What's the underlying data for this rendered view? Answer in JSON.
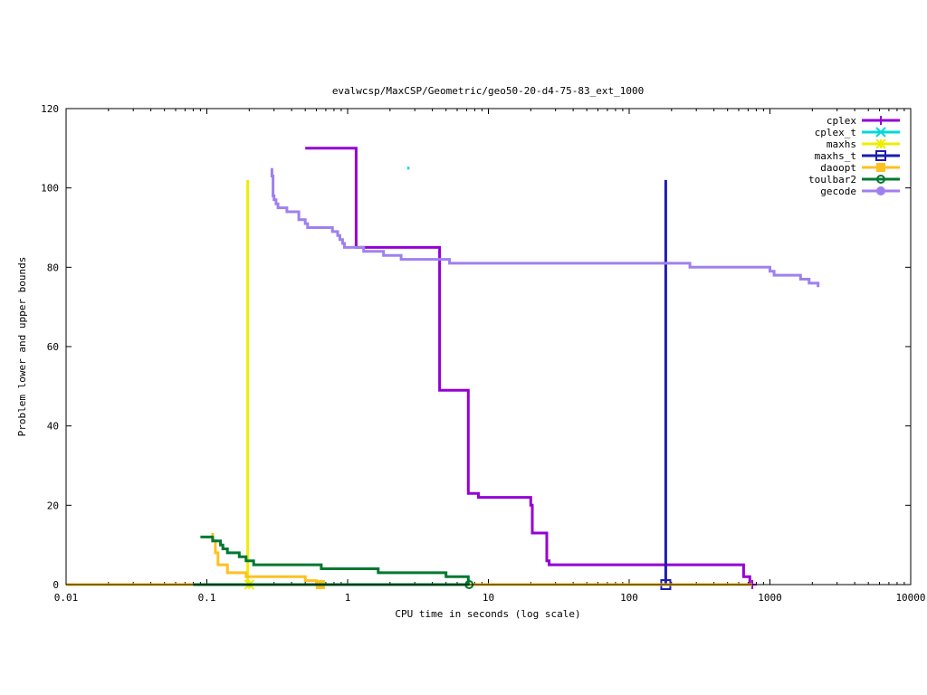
{
  "chart_data": {
    "type": "line",
    "title": "evalwcsp/MaxCSP/Geometric/geo50-20-d4-75-83_ext_1000",
    "xlabel": "CPU time in seconds (log scale)",
    "ylabel": "Problem lower and upper bounds",
    "xscale": "log",
    "xlim": [
      0.01,
      10000
    ],
    "ylim": [
      0,
      120
    ],
    "x_ticks": [
      {
        "value": 0.01,
        "label": "0.01"
      },
      {
        "value": 0.1,
        "label": "0.1"
      },
      {
        "value": 1,
        "label": "1"
      },
      {
        "value": 10,
        "label": "10"
      },
      {
        "value": 100,
        "label": "100"
      },
      {
        "value": 1000,
        "label": "1000"
      },
      {
        "value": 10000,
        "label": "10000"
      }
    ],
    "y_ticks": [
      {
        "value": 0,
        "label": "0"
      },
      {
        "value": 20,
        "label": "20"
      },
      {
        "value": 40,
        "label": "40"
      },
      {
        "value": 60,
        "label": "60"
      },
      {
        "value": 80,
        "label": "80"
      },
      {
        "value": 100,
        "label": "100"
      },
      {
        "value": 120,
        "label": "120"
      }
    ],
    "grid": false,
    "legend_position": "top-right",
    "series": [
      {
        "name": "cplex",
        "color": "#9400d3",
        "marker": "plus",
        "upper": [
          [
            0.5,
            110
          ],
          [
            1.15,
            110
          ],
          [
            1.15,
            85
          ],
          [
            4.5,
            85
          ],
          [
            4.5,
            49
          ],
          [
            7.2,
            49
          ],
          [
            7.2,
            23
          ],
          [
            8.5,
            23
          ],
          [
            8.5,
            22
          ],
          [
            20,
            22
          ],
          [
            20,
            20
          ],
          [
            20.5,
            20
          ],
          [
            20.5,
            13
          ],
          [
            26,
            13
          ],
          [
            26,
            6
          ],
          [
            27,
            6
          ],
          [
            27,
            5
          ],
          [
            650,
            5
          ],
          [
            650,
            2
          ],
          [
            720,
            2
          ],
          [
            720,
            0
          ]
        ],
        "lower": [
          [
            0.5,
            0
          ],
          [
            750,
            0
          ]
        ],
        "end": [
          750,
          0
        ]
      },
      {
        "name": "cplex_t",
        "color": "#00d9d9",
        "marker": "x",
        "upper": [
          [
            2.65,
            105
          ],
          [
            2.75,
            105
          ]
        ],
        "lower": [],
        "end": null
      },
      {
        "name": "maxhs",
        "color": "#eeee00",
        "marker": "star",
        "upper": [
          [
            0.195,
            102
          ],
          [
            0.195,
            0
          ]
        ],
        "lower": [
          [
            0.01,
            0
          ],
          [
            0.2,
            0
          ]
        ],
        "end": [
          0.2,
          0
        ]
      },
      {
        "name": "maxhs_t",
        "color": "#1c1cb0",
        "marker": "square",
        "upper": [
          [
            182,
            102
          ],
          [
            182,
            0
          ]
        ],
        "lower": [
          [
            0.2,
            0
          ],
          [
            182,
            0
          ]
        ],
        "end": [
          182,
          0
        ]
      },
      {
        "name": "daoopt",
        "color": "#ffc020",
        "marker": "filled-square",
        "upper": [
          [
            0.11,
            13
          ],
          [
            0.11,
            11
          ],
          [
            0.115,
            11
          ],
          [
            0.115,
            8
          ],
          [
            0.12,
            8
          ],
          [
            0.12,
            5
          ],
          [
            0.14,
            5
          ],
          [
            0.14,
            3
          ],
          [
            0.19,
            3
          ],
          [
            0.19,
            2
          ],
          [
            0.5,
            2
          ],
          [
            0.5,
            1
          ],
          [
            0.6,
            1
          ],
          [
            0.6,
            0
          ]
        ],
        "lower": [
          [
            0.01,
            0
          ],
          [
            750,
            0
          ]
        ],
        "end": [
          0.64,
          0
        ]
      },
      {
        "name": "toulbar2",
        "color": "#007830",
        "marker": "circle",
        "upper": [
          [
            0.09,
            12
          ],
          [
            0.11,
            12
          ],
          [
            0.11,
            11
          ],
          [
            0.125,
            11
          ],
          [
            0.125,
            10
          ],
          [
            0.13,
            10
          ],
          [
            0.13,
            9
          ],
          [
            0.14,
            9
          ],
          [
            0.14,
            8
          ],
          [
            0.17,
            8
          ],
          [
            0.17,
            7
          ],
          [
            0.19,
            7
          ],
          [
            0.19,
            6
          ],
          [
            0.215,
            6
          ],
          [
            0.215,
            5
          ],
          [
            0.65,
            5
          ],
          [
            0.65,
            4
          ],
          [
            1.65,
            4
          ],
          [
            1.65,
            3
          ],
          [
            5,
            3
          ],
          [
            5,
            2
          ],
          [
            7.2,
            2
          ],
          [
            7.2,
            0
          ]
        ],
        "lower": [
          [
            0.08,
            0
          ],
          [
            7.3,
            0
          ]
        ],
        "end": [
          7.3,
          0
        ]
      },
      {
        "name": "gecode",
        "color": "#9f80f0",
        "marker": "filled-circle",
        "upper": [
          [
            0.29,
            105
          ],
          [
            0.29,
            103
          ],
          [
            0.295,
            103
          ],
          [
            0.295,
            98
          ],
          [
            0.3,
            98
          ],
          [
            0.3,
            97
          ],
          [
            0.31,
            97
          ],
          [
            0.31,
            96
          ],
          [
            0.32,
            96
          ],
          [
            0.32,
            95
          ],
          [
            0.37,
            95
          ],
          [
            0.37,
            94
          ],
          [
            0.45,
            94
          ],
          [
            0.45,
            92
          ],
          [
            0.5,
            92
          ],
          [
            0.5,
            91
          ],
          [
            0.52,
            91
          ],
          [
            0.52,
            90
          ],
          [
            0.78,
            90
          ],
          [
            0.78,
            89
          ],
          [
            0.85,
            89
          ],
          [
            0.85,
            88
          ],
          [
            0.88,
            88
          ],
          [
            0.88,
            87
          ],
          [
            0.92,
            87
          ],
          [
            0.92,
            86
          ],
          [
            0.95,
            86
          ],
          [
            0.95,
            85
          ],
          [
            1.3,
            85
          ],
          [
            1.3,
            84
          ],
          [
            1.8,
            84
          ],
          [
            1.8,
            83
          ],
          [
            2.4,
            83
          ],
          [
            2.4,
            82
          ],
          [
            5.3,
            82
          ],
          [
            5.3,
            81
          ],
          [
            270,
            81
          ],
          [
            270,
            80
          ],
          [
            1000,
            80
          ],
          [
            1000,
            79
          ],
          [
            1070,
            79
          ],
          [
            1070,
            78
          ],
          [
            1650,
            78
          ],
          [
            1650,
            77
          ],
          [
            1900,
            77
          ],
          [
            1900,
            76
          ],
          [
            2200,
            76
          ],
          [
            2200,
            75
          ]
        ],
        "lower": [],
        "end": null
      }
    ]
  }
}
